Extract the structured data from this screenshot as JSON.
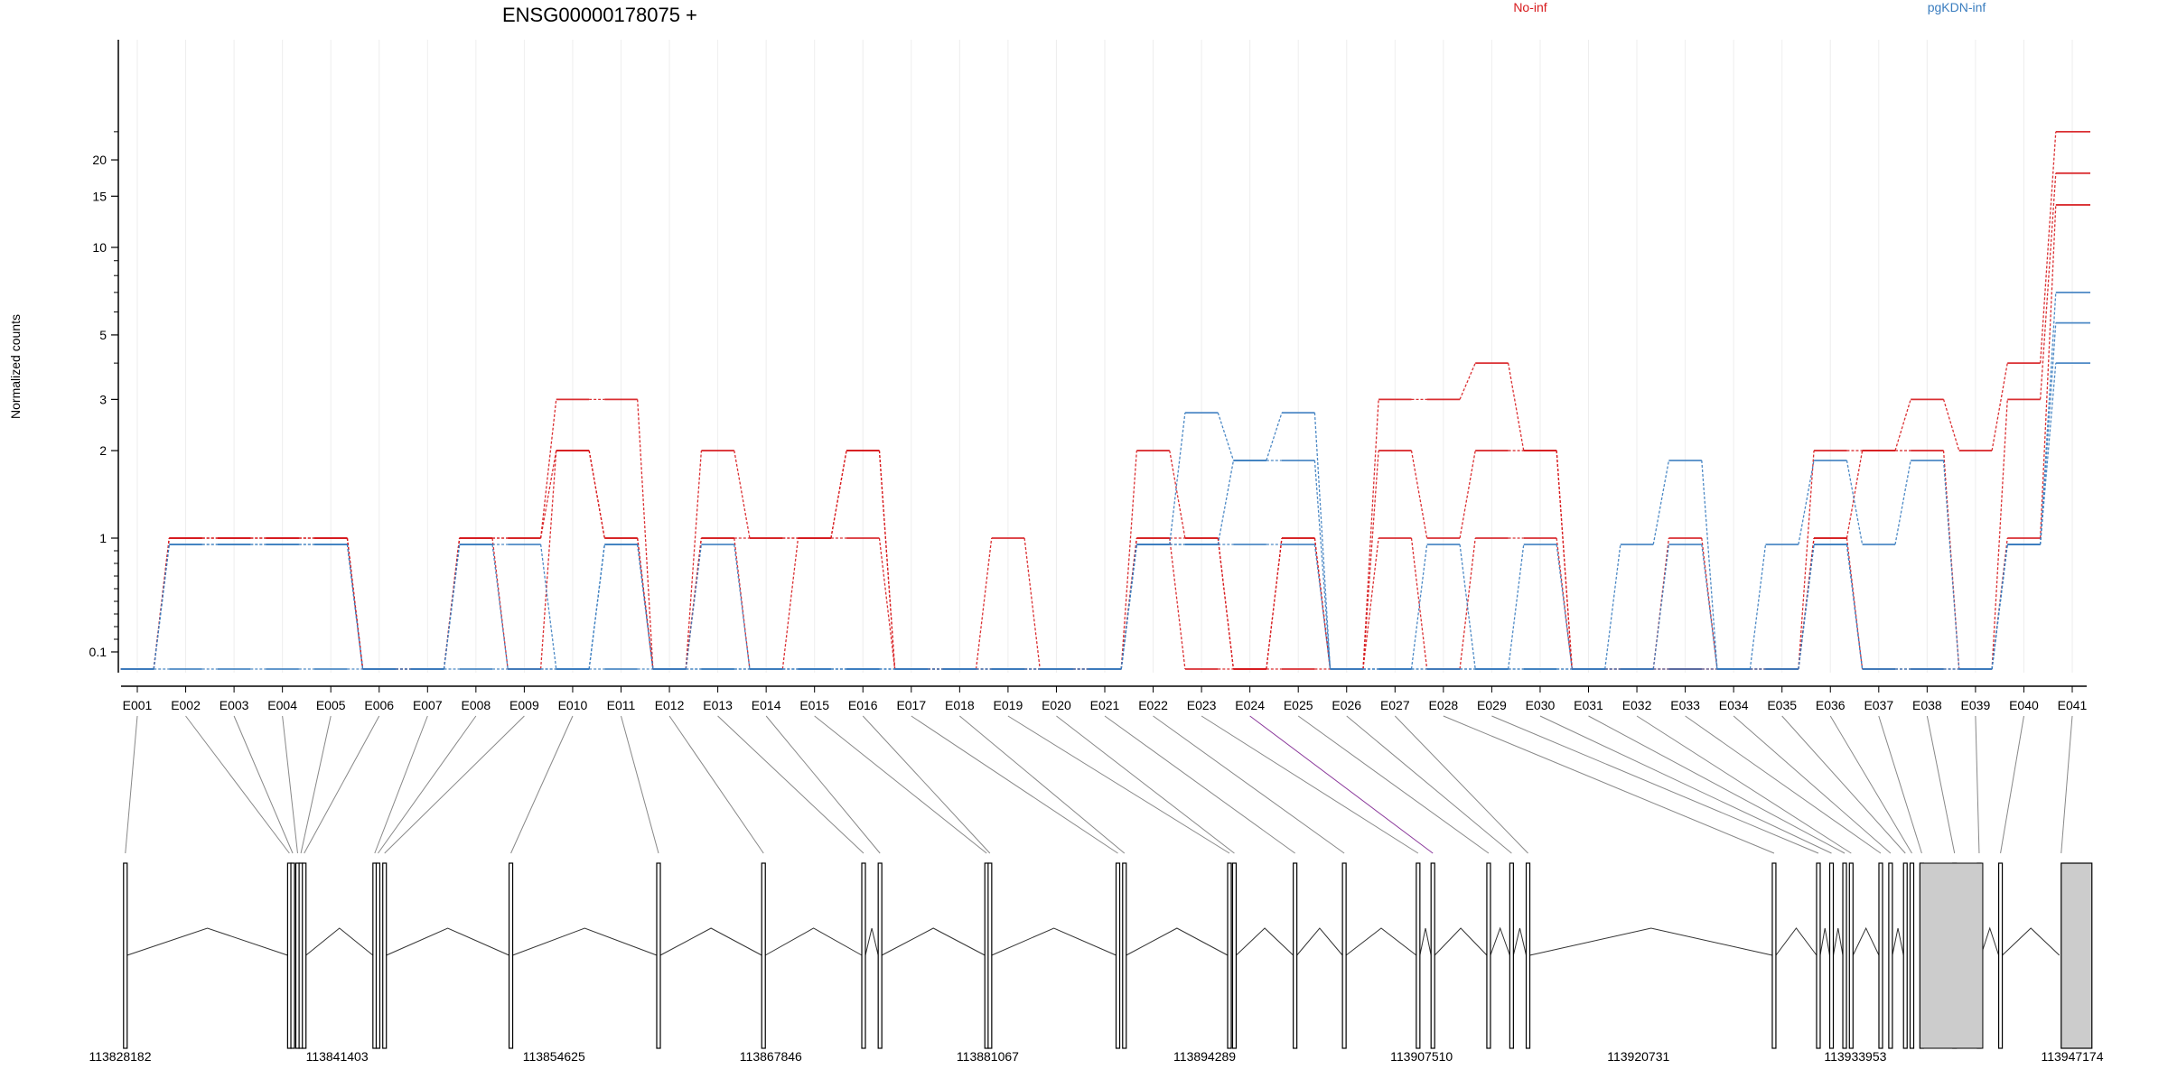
{
  "chart_data": {
    "type": "line",
    "title": "ENSG00000178075 +",
    "xlabel": "",
    "ylabel": "Normalized counts",
    "y_scale": "log",
    "grid": true,
    "legend_position": "top-right",
    "colors": {
      "No-inf": "#d7191c",
      "pgKDN-inf": "#3a7dbf",
      "highlight_connector": "#8b3a9b",
      "connector": "#888888",
      "exon_fill": "#cccccc",
      "axis": "#000000",
      "grid": "#eeeeee"
    },
    "yticks": [
      {
        "value": 0.1,
        "label": "0.1"
      },
      {
        "value": 1,
        "label": "1"
      },
      {
        "value": 2,
        "label": "2"
      },
      {
        "value": 3,
        "label": "3"
      },
      {
        "value": 5,
        "label": "5"
      },
      {
        "value": 10,
        "label": "10"
      },
      {
        "value": 15,
        "label": "15"
      },
      {
        "value": 20,
        "label": "20"
      }
    ],
    "categories": [
      "E001",
      "E002",
      "E003",
      "E004",
      "E005",
      "E006",
      "E007",
      "E008",
      "E009",
      "E010",
      "E011",
      "E012",
      "E013",
      "E014",
      "E015",
      "E016",
      "E017",
      "E018",
      "E019",
      "E020",
      "E021",
      "E022",
      "E023",
      "E024",
      "E025",
      "E026",
      "E027",
      "E028",
      "E029",
      "E030",
      "E031",
      "E032",
      "E033",
      "E034",
      "E035",
      "E036",
      "E037",
      "E038",
      "E039",
      "E040",
      "E041"
    ],
    "series": [
      {
        "name": "No-inf",
        "values": [
          0,
          1,
          1,
          1,
          1,
          0,
          0,
          1,
          1,
          3,
          3,
          0,
          2,
          1,
          1,
          2,
          0,
          0,
          1,
          0,
          0,
          2,
          1,
          0,
          1,
          0,
          3,
          3,
          4,
          2,
          0,
          0,
          1,
          0,
          0,
          2,
          2,
          3,
          2,
          4,
          25
        ]
      },
      {
        "name": "No-inf",
        "values": [
          0,
          1,
          1,
          1,
          1,
          0,
          0,
          1,
          1,
          2,
          1,
          0,
          1,
          1,
          1,
          2,
          0,
          0,
          0,
          0,
          0,
          1,
          1,
          0,
          1,
          0,
          2,
          1,
          2,
          2,
          0,
          0,
          0,
          0,
          0,
          1,
          2,
          2,
          0,
          3,
          18
        ]
      },
      {
        "name": "No-inf",
        "values": [
          0,
          1,
          1,
          1,
          1,
          0,
          0,
          1,
          0,
          2,
          1,
          0,
          1,
          0,
          1,
          1,
          0,
          0,
          0,
          0,
          0,
          1,
          0,
          0,
          0,
          0,
          1,
          0,
          1,
          1,
          0,
          0,
          0,
          0,
          0,
          1,
          0,
          0,
          0,
          1,
          14
        ]
      },
      {
        "name": "pgKDN-inf",
        "values": [
          0,
          0.95,
          0.95,
          0.95,
          0.95,
          0,
          0,
          0.95,
          0.95,
          0,
          0.95,
          0,
          0.95,
          0,
          0,
          0,
          0,
          0,
          0,
          0,
          0,
          0.95,
          2.7,
          1.85,
          2.7,
          0,
          0,
          0.95,
          0,
          0.95,
          0,
          0.95,
          1.85,
          0,
          0.95,
          1.85,
          0.95,
          1.85,
          0,
          0.95,
          7
        ]
      },
      {
        "name": "pgKDN-inf",
        "values": [
          0,
          0.95,
          0.95,
          0.95,
          0.95,
          0,
          0,
          0.95,
          0,
          0,
          0.95,
          0,
          0,
          0,
          0,
          0,
          0,
          0,
          0,
          0,
          0,
          0.95,
          0.95,
          1.85,
          1.85,
          0,
          0,
          0,
          0,
          0,
          0,
          0,
          0.95,
          0,
          0,
          0.95,
          0,
          0,
          0,
          0.95,
          5.5
        ]
      },
      {
        "name": "pgKDN-inf",
        "values": [
          0,
          0,
          0,
          0,
          0,
          0,
          0,
          0,
          0,
          0,
          0,
          0,
          0,
          0,
          0,
          0,
          0,
          0,
          0,
          0,
          0,
          0.95,
          0.95,
          0.95,
          0.95,
          0,
          0,
          0,
          0,
          0,
          0,
          0,
          0,
          0,
          0,
          0.95,
          0,
          0,
          0,
          0.95,
          4
        ]
      }
    ],
    "genomic_axis": {
      "ticks": [
        "113828182",
        "113841403",
        "113854625",
        "113867846",
        "113881067",
        "113894289",
        "113907510",
        "113920731",
        "113933953",
        "113947174"
      ],
      "start": 113828182,
      "end": 113947174
    },
    "exon_positions": [
      113828500,
      113838500,
      113838700,
      113839000,
      113839200,
      113839400,
      113843700,
      113843900,
      113844300,
      113852000,
      113861000,
      113867400,
      113873500,
      113874500,
      113881000,
      113881200,
      113889000,
      113889400,
      113895800,
      113896100,
      113899800,
      113902800,
      113907300,
      113908200,
      113911600,
      113913000,
      113914000,
      113929000,
      113931700,
      113932500,
      113933300,
      113933700,
      113935500,
      113936100,
      113937000,
      113937400,
      113938000,
      113940000,
      113941500,
      113942800,
      113946500
    ],
    "highlight_exon": "E024"
  }
}
